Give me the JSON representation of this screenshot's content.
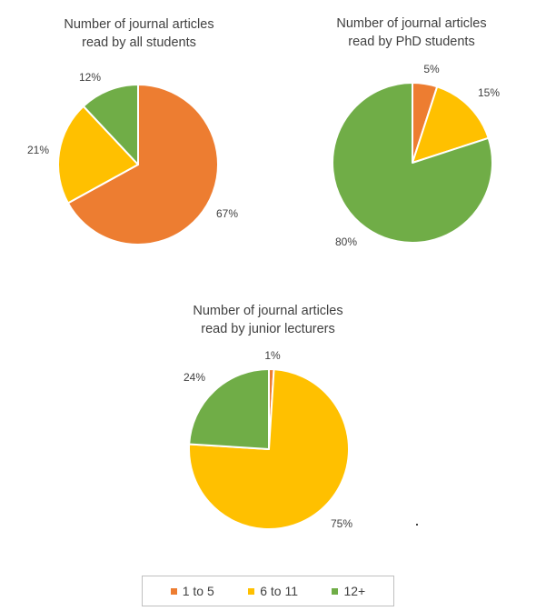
{
  "chart_data": [
    {
      "type": "pie",
      "title_lines": [
        "Number of journal articles",
        "read by all students"
      ],
      "categories": [
        "1 to 5",
        "6 to 11",
        "12+"
      ],
      "values": [
        67,
        21,
        12
      ],
      "labels": [
        "67%",
        "21%",
        "12%"
      ],
      "colors": [
        "#ed7d31",
        "#ffc000",
        "#70ad47"
      ]
    },
    {
      "type": "pie",
      "title_lines": [
        "Number of journal articles",
        "read by PhD students"
      ],
      "categories": [
        "1 to 5",
        "6 to 11",
        "12+"
      ],
      "values": [
        5,
        15,
        80
      ],
      "labels": [
        "5%",
        "15%",
        "80%"
      ],
      "colors": [
        "#ed7d31",
        "#ffc000",
        "#70ad47"
      ]
    },
    {
      "type": "pie",
      "title_lines": [
        "Number of journal articles",
        "read by junior lecturers"
      ],
      "categories": [
        "1 to 5",
        "6 to 11",
        "12+"
      ],
      "values": [
        1,
        75,
        24
      ],
      "labels": [
        "1%",
        "75%",
        "24%"
      ],
      "colors": [
        "#ed7d31",
        "#ffc000",
        "#70ad47"
      ]
    }
  ],
  "legend": {
    "placement": "bottom",
    "items": [
      {
        "label": "1 to 5",
        "color": "#ed7d31"
      },
      {
        "label": "6 to 11",
        "color": "#ffc000"
      },
      {
        "label": "12+",
        "color": "#70ad47"
      }
    ]
  }
}
